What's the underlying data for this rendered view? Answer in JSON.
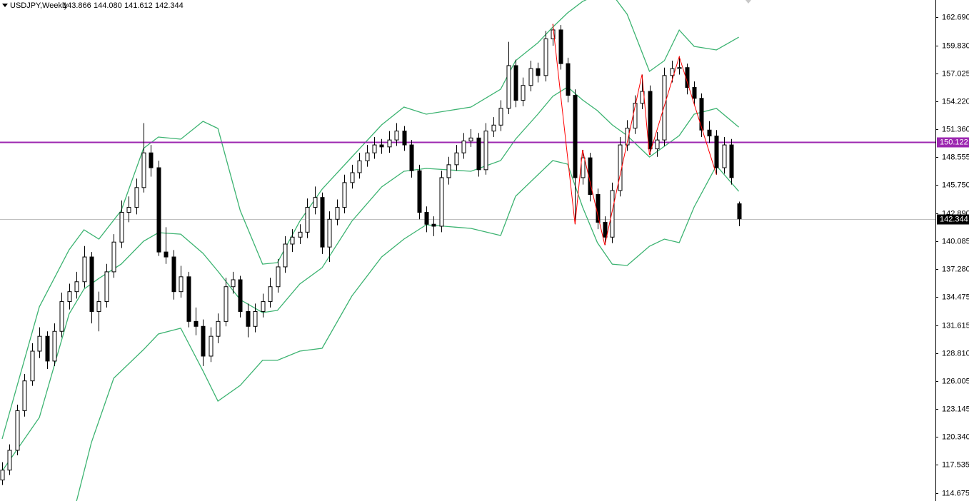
{
  "chart_data": {
    "type": "candlestick",
    "title": "USDJPY,Weekly",
    "last_bar_labels": [
      "143.866",
      "144.080",
      "141.612",
      "142.344"
    ],
    "candles": [
      [
        116.0,
        117.8,
        115.5,
        117.0
      ],
      [
        117.0,
        119.6,
        116.5,
        119.0
      ],
      [
        119.0,
        123.6,
        118.5,
        123.0
      ],
      [
        123.0,
        126.7,
        122.4,
        126.0
      ],
      [
        126.0,
        129.8,
        125.5,
        129.0
      ],
      [
        129.0,
        131.4,
        128.3,
        130.5
      ],
      [
        130.5,
        131.0,
        127.2,
        128.0
      ],
      [
        128.0,
        131.8,
        127.5,
        131.0
      ],
      [
        131.0,
        134.9,
        130.4,
        134.0
      ],
      [
        134.0,
        135.8,
        133.2,
        135.0
      ],
      [
        135.0,
        137.0,
        134.3,
        136.0
      ],
      [
        136.0,
        139.6,
        135.4,
        138.5
      ],
      [
        138.5,
        139.0,
        131.8,
        133.0
      ],
      [
        133.0,
        135.0,
        131.0,
        134.0
      ],
      [
        134.0,
        137.8,
        133.4,
        137.0
      ],
      [
        137.0,
        140.8,
        136.4,
        140.0
      ],
      [
        140.0,
        144.2,
        139.4,
        143.0
      ],
      [
        143.0,
        144.6,
        142.0,
        143.5
      ],
      [
        143.5,
        146.4,
        142.8,
        145.5
      ],
      [
        145.5,
        152.0,
        145.0,
        149.0
      ],
      [
        149.0,
        149.8,
        146.6,
        147.5
      ],
      [
        147.5,
        148.2,
        138.6,
        139.0
      ],
      [
        139.0,
        141.5,
        137.8,
        138.5
      ],
      [
        138.5,
        139.2,
        134.2,
        135.0
      ],
      [
        135.0,
        137.6,
        134.4,
        136.5
      ],
      [
        136.5,
        137.0,
        131.4,
        132.0
      ],
      [
        132.0,
        133.4,
        130.6,
        131.5
      ],
      [
        131.5,
        132.2,
        127.5,
        128.5
      ],
      [
        128.5,
        131.4,
        127.9,
        130.5
      ],
      [
        130.5,
        132.8,
        129.8,
        132.0
      ],
      [
        132.0,
        136.4,
        131.5,
        135.5
      ],
      [
        135.5,
        137.0,
        134.8,
        136.2
      ],
      [
        136.2,
        136.6,
        132.4,
        133.0
      ],
      [
        133.0,
        133.8,
        130.4,
        131.5
      ],
      [
        131.5,
        133.8,
        130.9,
        133.0
      ],
      [
        133.0,
        134.8,
        132.4,
        134.0
      ],
      [
        134.0,
        136.4,
        133.4,
        135.5
      ],
      [
        135.5,
        138.3,
        134.9,
        137.5
      ],
      [
        137.5,
        140.6,
        136.9,
        139.8
      ],
      [
        139.8,
        141.3,
        139.0,
        140.5
      ],
      [
        140.5,
        141.8,
        139.8,
        141.0
      ],
      [
        141.0,
        144.4,
        140.4,
        143.5
      ],
      [
        143.5,
        145.6,
        142.8,
        144.5
      ],
      [
        144.5,
        145.0,
        138.8,
        139.5
      ],
      [
        139.5,
        143.1,
        138.0,
        142.3
      ],
      [
        142.3,
        144.3,
        141.7,
        143.5
      ],
      [
        143.5,
        146.8,
        142.9,
        146.0
      ],
      [
        146.0,
        147.8,
        145.4,
        147.0
      ],
      [
        147.0,
        149.0,
        146.4,
        148.2
      ],
      [
        148.2,
        149.8,
        147.6,
        149.0
      ],
      [
        149.0,
        150.6,
        148.4,
        149.8
      ],
      [
        149.8,
        150.4,
        148.9,
        149.6
      ],
      [
        149.6,
        151.2,
        149.0,
        150.3
      ],
      [
        150.3,
        152.0,
        149.7,
        151.2
      ],
      [
        151.2,
        151.7,
        149.2,
        149.8
      ],
      [
        149.8,
        150.3,
        146.5,
        147.2
      ],
      [
        147.2,
        147.8,
        142.3,
        143.0
      ],
      [
        143.0,
        143.6,
        141.0,
        141.8
      ],
      [
        141.8,
        142.6,
        140.6,
        141.6
      ],
      [
        141.6,
        147.2,
        141.0,
        146.5
      ],
      [
        146.5,
        148.6,
        145.8,
        147.8
      ],
      [
        147.8,
        149.8,
        147.2,
        149.0
      ],
      [
        149.0,
        151.0,
        148.4,
        150.2
      ],
      [
        150.2,
        151.4,
        149.6,
        150.5
      ],
      [
        150.5,
        151.0,
        146.6,
        147.3
      ],
      [
        147.3,
        152.0,
        146.8,
        151.2
      ],
      [
        151.2,
        152.6,
        150.6,
        151.8
      ],
      [
        151.8,
        154.3,
        151.2,
        153.5
      ],
      [
        153.5,
        160.2,
        152.9,
        157.8
      ],
      [
        157.8,
        158.4,
        153.6,
        154.3
      ],
      [
        154.3,
        156.6,
        153.7,
        155.8
      ],
      [
        155.8,
        158.3,
        155.2,
        157.5
      ],
      [
        157.5,
        158.1,
        156.1,
        156.8
      ],
      [
        156.8,
        161.3,
        156.2,
        160.5
      ],
      [
        160.5,
        162.0,
        159.8,
        161.4
      ],
      [
        161.4,
        161.9,
        157.4,
        158.0
      ],
      [
        158.0,
        158.6,
        154.1,
        154.8
      ],
      [
        154.8,
        155.4,
        141.8,
        146.5
      ],
      [
        146.5,
        149.3,
        145.8,
        148.5
      ],
      [
        148.5,
        149.0,
        144.1,
        144.8
      ],
      [
        144.8,
        145.4,
        141.3,
        142.0
      ],
      [
        142.0,
        142.6,
        139.7,
        140.5
      ],
      [
        140.5,
        146.0,
        139.9,
        145.2
      ],
      [
        145.2,
        150.6,
        144.6,
        149.8
      ],
      [
        149.8,
        152.3,
        149.2,
        151.5
      ],
      [
        151.5,
        154.8,
        150.9,
        154.0
      ],
      [
        154.0,
        156.9,
        153.4,
        155.2
      ],
      [
        155.2,
        155.8,
        148.8,
        149.4
      ],
      [
        149.4,
        151.1,
        148.6,
        150.3
      ],
      [
        150.3,
        157.6,
        149.7,
        156.8
      ],
      [
        156.8,
        158.3,
        156.1,
        157.5
      ],
      [
        157.5,
        158.7,
        156.9,
        157.6
      ],
      [
        157.6,
        158.0,
        154.9,
        155.6
      ],
      [
        155.6,
        156.2,
        153.8,
        154.5
      ],
      [
        154.5,
        155.0,
        150.6,
        151.3
      ],
      [
        151.3,
        152.2,
        150.0,
        150.7
      ],
      [
        150.7,
        151.3,
        146.8,
        147.5
      ],
      [
        147.5,
        150.6,
        146.9,
        149.8
      ],
      [
        149.8,
        150.4,
        145.8,
        146.5
      ],
      [
        143.866,
        144.08,
        141.612,
        142.344
      ]
    ],
    "bands": [
      {
        "color": "#3cb371",
        "x": [
          0,
          5,
          9,
          11,
          13,
          16,
          19,
          21,
          24,
          27,
          29,
          32,
          35,
          37,
          40,
          43,
          47,
          51,
          54,
          57,
          63,
          67,
          69,
          72,
          74,
          76,
          78,
          80,
          82,
          84,
          87,
          89,
          91,
          93,
          96,
          99
        ],
        "values": [
          120.15,
          133.47,
          139.22,
          141.24,
          140.3,
          143.18,
          149.45,
          150.6,
          150.38,
          152.18,
          151.46,
          143.18,
          137.78,
          137.93,
          142.1,
          145.34,
          148.58,
          151.82,
          153.62,
          152.9,
          153.62,
          155.42,
          158.3,
          160.1,
          161.68,
          163.12,
          164.27,
          164.99,
          164.99,
          162.98,
          157.22,
          158.3,
          161.39,
          159.74,
          159.38,
          160.67
        ]
      },
      {
        "color": "#3cb371",
        "x": [
          0,
          5,
          9,
          11,
          13,
          16,
          19,
          21,
          24,
          27,
          29,
          32,
          35,
          37,
          40,
          43,
          47,
          51,
          54,
          57,
          63,
          67,
          69,
          72,
          74,
          76,
          78,
          80,
          82,
          84,
          87,
          89,
          91,
          93,
          96,
          99
        ],
        "values": [
          116.91,
          122.31,
          132.75,
          135.26,
          136.34,
          137.78,
          140.09,
          140.95,
          140.8,
          138.86,
          137.06,
          134.19,
          132.89,
          133.11,
          135.77,
          137.42,
          142.1,
          145.56,
          147.14,
          147.43,
          147.14,
          148.22,
          150.38,
          152.9,
          154.7,
          155.64,
          154.34,
          153.26,
          151.82,
          150.74,
          148.58,
          149.66,
          150.74,
          152.9,
          153.48,
          151.6
        ]
      },
      {
        "color": "#3cb371",
        "x": [
          10,
          12,
          15,
          19,
          21,
          24,
          27,
          29,
          32,
          35,
          37,
          40,
          43,
          47,
          51,
          54,
          57,
          63,
          67,
          69,
          72,
          74,
          76,
          78,
          80,
          82,
          84,
          87,
          89,
          91,
          93,
          96,
          99
        ],
        "values": [
          113.88,
          119.79,
          126.27,
          129.15,
          130.73,
          131.31,
          127.0,
          123.96,
          125.55,
          128.07,
          128.07,
          129.0,
          129.29,
          134.55,
          138.5,
          140.3,
          141.74,
          141.38,
          140.66,
          144.62,
          146.78,
          148.22,
          147.86,
          143.54,
          139.94,
          137.78,
          137.64,
          139.58,
          140.3,
          139.94,
          143.54,
          147.71,
          145.12
        ]
      }
    ],
    "zigzag": {
      "color": "#ff0000",
      "x": [
        74,
        77,
        78,
        81,
        86,
        87,
        91,
        96
      ],
      "values": [
        162.0,
        141.8,
        149.3,
        139.7,
        156.9,
        148.8,
        158.7,
        146.8
      ]
    },
    "level_line": {
      "value": 150.122,
      "color": "#9c27b0"
    },
    "current_price": {
      "value": 142.344,
      "color": "#c0c0c0"
    },
    "ylim": [
      113.885,
      164.418
    ],
    "yticks": [
      {
        "value": 162.69,
        "label": "162.690"
      },
      {
        "value": 159.83,
        "label": "159.830"
      },
      157.025,
      {
        "value": 154.22,
        "label": "154.220"
      },
      {
        "value": 151.36,
        "label": "151.360"
      },
      148.555,
      {
        "value": 145.75,
        "label": "145.750"
      },
      {
        "value": 142.89,
        "label": "142.890"
      },
      140.085,
      {
        "value": 137.28,
        "label": "137.280"
      },
      134.475,
      131.615,
      {
        "value": 128.81,
        "label": "128.810"
      },
      126.005,
      123.145,
      {
        "value": 120.34,
        "label": "120.340"
      },
      117.535,
      114.675
    ]
  }
}
